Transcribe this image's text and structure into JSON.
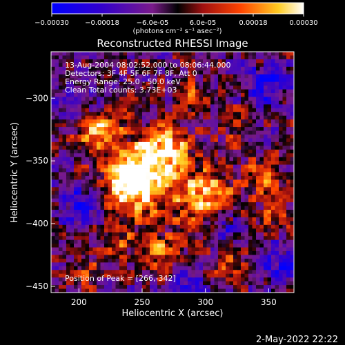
{
  "chart_data": {
    "type": "heatmap",
    "title": "Reconstructed RHESSI Image",
    "xlabel": "Heliocentric X (arcsec)",
    "ylabel": "Heliocentric Y (arcsec)",
    "xlim": [
      178,
      370
    ],
    "ylim": [
      -455,
      -263
    ],
    "x_ticks": [
      200,
      250,
      300,
      350
    ],
    "y_ticks": [
      -300,
      -350,
      -400,
      -450
    ],
    "colorbar": {
      "min": -0.0003,
      "max": 0.0003,
      "ticks": [
        "-0.00030",
        "-0.00018",
        "-6.0e-05",
        "6.0e-05",
        "0.00018",
        "0.00030"
      ],
      "unit_label": "(photons cm⁻² s⁻¹ asec⁻²)"
    },
    "annotations": [
      "13-Aug-2004 08:02:52.000 to 08:06:44.000",
      "Detectors: 3F 4F 5F 6F 7F 8F, Att 0",
      "Energy Range: 25.0 - 50.0 keV",
      "Clean     Total counts: 3.73E+03"
    ],
    "peak_label": "Position of Peak = [266,-342]",
    "peak": [
      266,
      -342
    ],
    "blobs": [
      {
        "x": 266,
        "y": -342,
        "amp": 0.00032,
        "s": 14
      },
      {
        "x": 238,
        "y": -362,
        "amp": 0.0003,
        "s": 13
      },
      {
        "x": 300,
        "y": -378,
        "amp": 0.00027,
        "s": 16
      },
      {
        "x": 250,
        "y": -375,
        "amp": 0.00022,
        "s": 18
      },
      {
        "x": 210,
        "y": -330,
        "amp": 0.00018,
        "s": 11
      },
      {
        "x": 222,
        "y": -325,
        "amp": 0.00017,
        "s": 10
      },
      {
        "x": 345,
        "y": -362,
        "amp": 0.00016,
        "s": 10
      },
      {
        "x": 325,
        "y": -320,
        "amp": 0.00015,
        "s": 9
      },
      {
        "x": 290,
        "y": -300,
        "amp": 0.00014,
        "s": 9
      },
      {
        "x": 355,
        "y": -395,
        "amp": 0.00013,
        "s": 10
      },
      {
        "x": 265,
        "y": -425,
        "amp": 0.00018,
        "s": 12
      },
      {
        "x": 230,
        "y": -415,
        "amp": 0.00012,
        "s": 10
      },
      {
        "x": 205,
        "y": -440,
        "amp": 0.00012,
        "s": 10
      },
      {
        "x": 320,
        "y": -435,
        "amp": 0.00014,
        "s": 10
      },
      {
        "x": 200,
        "y": -385,
        "amp": -0.0002,
        "s": 11
      },
      {
        "x": 350,
        "y": -290,
        "amp": -0.0002,
        "s": 12
      },
      {
        "x": 360,
        "y": -430,
        "amp": -0.00018,
        "s": 12
      },
      {
        "x": 315,
        "y": -405,
        "amp": -0.00016,
        "s": 9
      },
      {
        "x": 195,
        "y": -300,
        "amp": -0.00016,
        "s": 12
      },
      {
        "x": 285,
        "y": -445,
        "amp": -0.00014,
        "s": 10
      }
    ]
  },
  "footer": {
    "date": "2-May-2022 22:22"
  }
}
